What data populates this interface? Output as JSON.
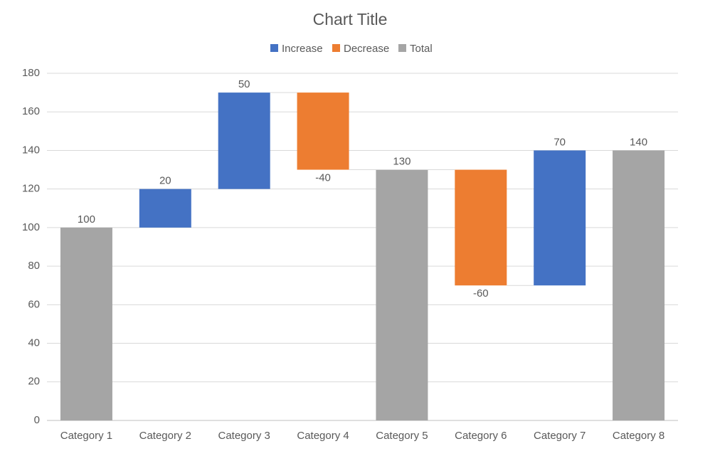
{
  "chart_data": {
    "type": "waterfall",
    "title": "Chart Title",
    "categories": [
      "Category 1",
      "Category 2",
      "Category 3",
      "Category 4",
      "Category 5",
      "Category 6",
      "Category 7",
      "Category 8"
    ],
    "series": [
      {
        "name": "Increase",
        "color": "#4472c4",
        "values": [
          null,
          20,
          50,
          null,
          null,
          null,
          70,
          null
        ]
      },
      {
        "name": "Decrease",
        "color": "#ed7d31",
        "values": [
          null,
          null,
          null,
          -40,
          null,
          -60,
          null,
          null
        ]
      },
      {
        "name": "Total",
        "color": "#a5a5a5",
        "values": [
          100,
          null,
          null,
          null,
          130,
          null,
          null,
          140
        ]
      }
    ],
    "ylim": [
      0,
      180
    ],
    "yticks": [
      0,
      20,
      40,
      60,
      80,
      100,
      120,
      140,
      160,
      180
    ],
    "grid": true,
    "legend": "top"
  }
}
